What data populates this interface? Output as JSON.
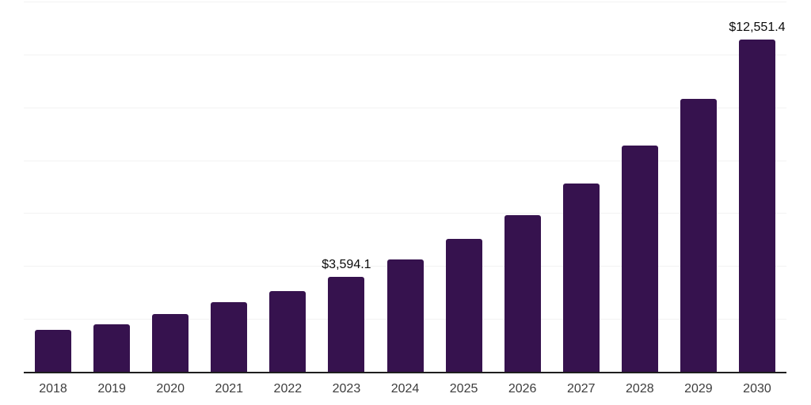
{
  "chart_data": {
    "type": "bar",
    "title": "",
    "xlabel": "",
    "ylabel": "",
    "categories": [
      "2018",
      "2019",
      "2020",
      "2021",
      "2022",
      "2023",
      "2024",
      "2025",
      "2026",
      "2027",
      "2028",
      "2029",
      "2030"
    ],
    "values": [
      1600,
      1800,
      2190,
      2620,
      3060,
      3594.1,
      4240,
      5020,
      5930,
      7110,
      8570,
      10330,
      12551.4
    ],
    "annotations": [
      {
        "category": "2023",
        "label": "$3,594.1"
      },
      {
        "category": "2030",
        "label": "$12,551.4"
      }
    ],
    "ylim": [
      0,
      14000
    ],
    "grid_interval": 2000,
    "grid": true,
    "legend": false,
    "y_tick_labels_visible": false,
    "colors": {
      "bar": "#36124E",
      "grid": "#f2f2f2",
      "axis": "#1f1f1f",
      "tick_text": "#3d3d3d",
      "label_text": "#0a0a0a",
      "background": "#ffffff"
    }
  }
}
